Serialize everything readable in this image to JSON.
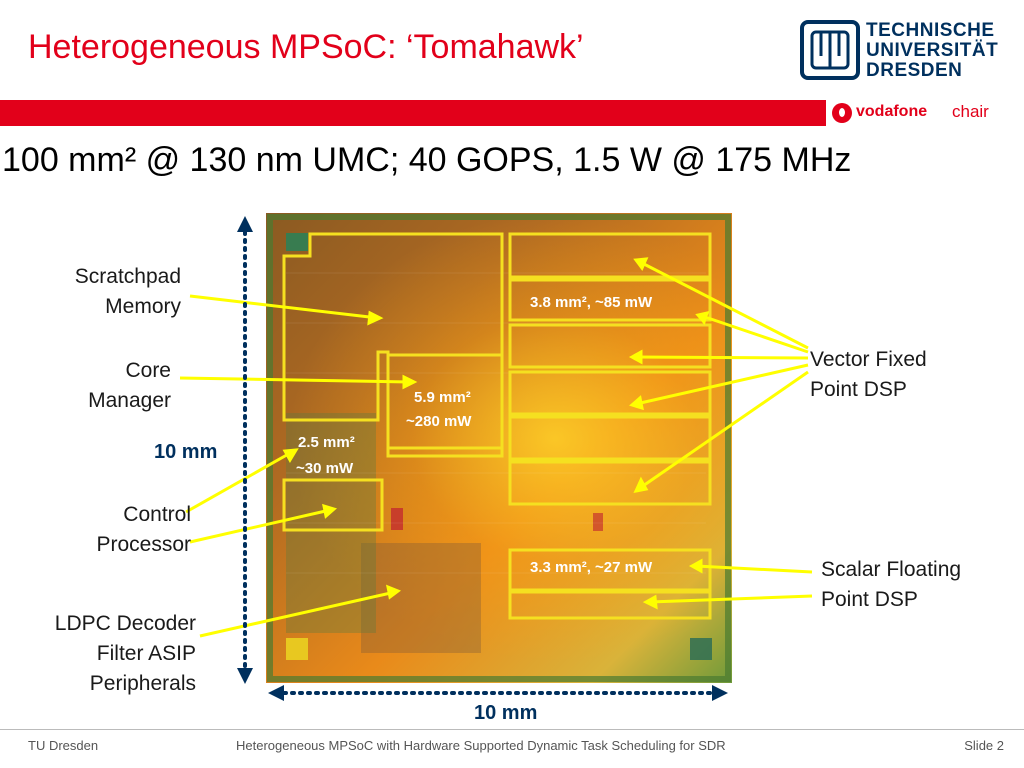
{
  "slide": {
    "title": "Heterogeneous MPSoC: ‘Tomahawk’",
    "subtitle": "100 mm² @ 130 nm UMC; 40 GOPS, 1.5 W @ 175 MHz",
    "university": {
      "line1": "TECHNISCHE",
      "line2": "UNIVERSITÄT",
      "line3": "DRESDEN"
    },
    "vodafone": {
      "name": "vodafone",
      "suffix": "chair"
    },
    "colors": {
      "accent": "#e2001a",
      "tud_blue": "#00305e",
      "block_outline": "#f5e020",
      "arrow": "#ffff00"
    }
  },
  "die": {
    "labels": {
      "scratchpad_1": "Scratchpad",
      "scratchpad_2": "Memory",
      "core_manager_1": "Core",
      "core_manager_2": "Manager",
      "control_1": "Control",
      "control_2": "Processor",
      "ldpc_1": "LDPC Decoder",
      "ldpc_2": "Filter ASIP",
      "ldpc_3": "Peripherals",
      "vector_dsp_1": "Vector Fixed",
      "vector_dsp_2": "Point DSP",
      "scalar_dsp_1": "Scalar Floating",
      "scalar_dsp_2": "Point DSP"
    },
    "annotations": {
      "vector_dsp": "3.8 mm², ~85 mW",
      "core_mgr_area": "5.9 mm²",
      "core_mgr_power": "~280 mW",
      "control_area": "2.5 mm²",
      "control_power": "~30 mW",
      "scalar_dsp": "3.3 mm², ~27 mW"
    },
    "dimensions": {
      "height": "10 mm",
      "width": "10 mm"
    }
  },
  "footer": {
    "left": "TU Dresden",
    "center": "Heterogeneous MPSoC with Hardware Supported Dynamic Task Scheduling for SDR",
    "right": "Slide 2"
  }
}
